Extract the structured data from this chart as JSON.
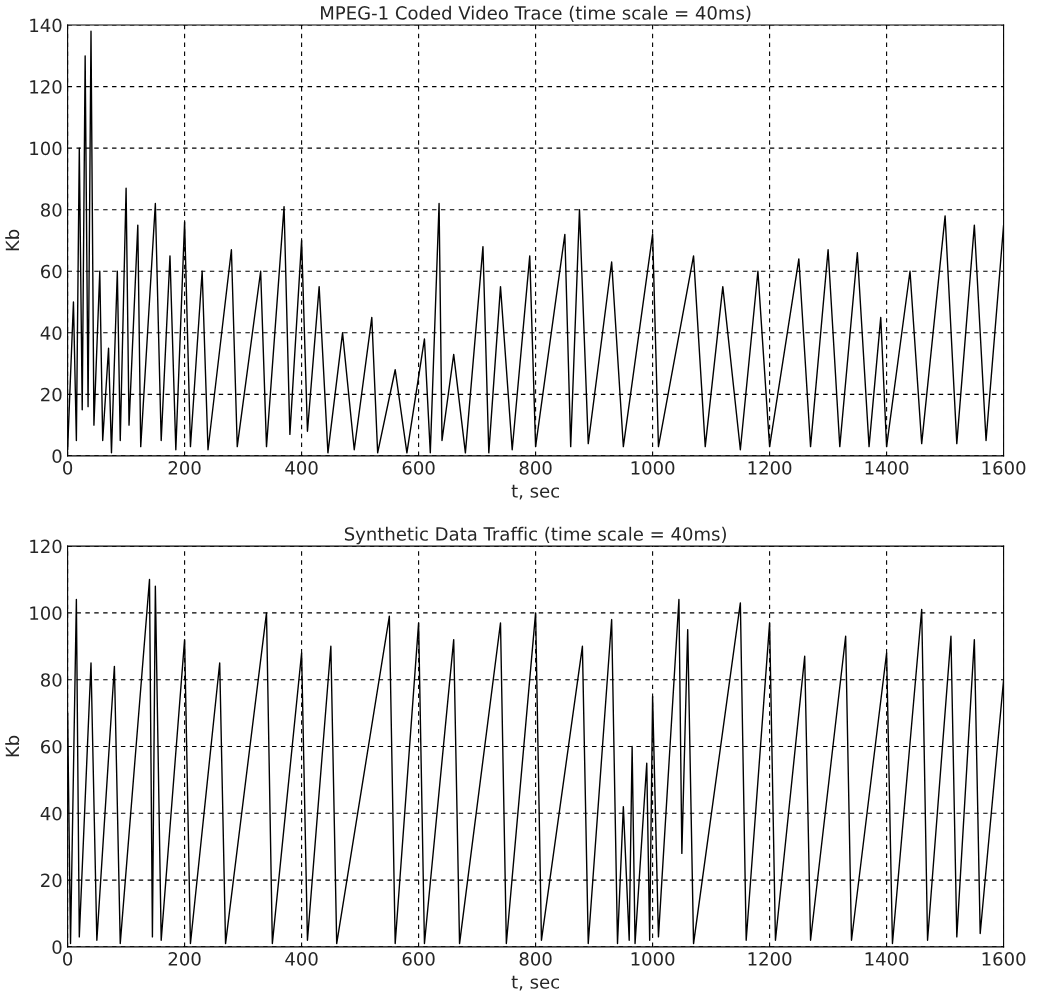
{
  "chart_data": [
    {
      "type": "line",
      "title": "MPEG-1 Coded Video Trace (time scale = 40ms)",
      "xlabel": "t, sec",
      "ylabel": "Kb",
      "xlim": [
        0,
        1600
      ],
      "ylim": [
        0,
        140
      ],
      "xticks": [
        0,
        200,
        400,
        600,
        800,
        1000,
        1200,
        1400,
        1600
      ],
      "yticks": [
        0,
        20,
        40,
        60,
        80,
        100,
        120,
        140
      ],
      "grid": true,
      "line_style": "solid",
      "legend": false,
      "series": [
        {
          "color": "#000000",
          "x": [
            0,
            10,
            15,
            20,
            25,
            30,
            35,
            40,
            45,
            55,
            60,
            70,
            75,
            85,
            90,
            100,
            105,
            120,
            125,
            150,
            160,
            175,
            185,
            200,
            210,
            230,
            240,
            280,
            290,
            330,
            340,
            370,
            380,
            400,
            410,
            430,
            445,
            470,
            490,
            520,
            530,
            560,
            580,
            610,
            620,
            635,
            640,
            660,
            680,
            710,
            720,
            740,
            760,
            790,
            800,
            850,
            860,
            875,
            890,
            930,
            950,
            1000,
            1010,
            1070,
            1090,
            1120,
            1150,
            1180,
            1200,
            1250,
            1270,
            1300,
            1320,
            1350,
            1370,
            1390,
            1400,
            1440,
            1460,
            1500,
            1520,
            1550,
            1570,
            1600
          ],
          "values": [
            2,
            50,
            5,
            100,
            15,
            130,
            16,
            138,
            10,
            60,
            5,
            35,
            1,
            60,
            5,
            87,
            10,
            75,
            3,
            82,
            5,
            65,
            2,
            76,
            3,
            60,
            2,
            67,
            3,
            60,
            3,
            81,
            7,
            70,
            8,
            55,
            1,
            40,
            2,
            45,
            1,
            28,
            1,
            38,
            1,
            82,
            5,
            33,
            1,
            68,
            1,
            55,
            2,
            65,
            3,
            72,
            3,
            80,
            4,
            63,
            3,
            72,
            3,
            65,
            3,
            55,
            2,
            60,
            3,
            64,
            3,
            67,
            3,
            66,
            3,
            45,
            3,
            60,
            4,
            78,
            4,
            75,
            5,
            75
          ]
        }
      ]
    },
    {
      "type": "line",
      "title": "Synthetic Data Traffic (time scale = 40ms)",
      "xlabel": "t, sec",
      "ylabel": "Kb",
      "xlim": [
        0,
        1600
      ],
      "ylim": [
        0,
        120
      ],
      "xticks": [
        0,
        200,
        400,
        600,
        800,
        1000,
        1200,
        1400,
        1600
      ],
      "yticks": [
        0,
        20,
        40,
        60,
        80,
        100,
        120
      ],
      "grid": true,
      "line_style": "solid",
      "legend": false,
      "series": [
        {
          "color": "#000000",
          "x": [
            0,
            5,
            15,
            20,
            40,
            50,
            80,
            90,
            140,
            145,
            150,
            160,
            200,
            210,
            260,
            270,
            340,
            350,
            400,
            410,
            450,
            460,
            550,
            560,
            600,
            610,
            660,
            670,
            740,
            750,
            800,
            810,
            880,
            890,
            930,
            940,
            950,
            960,
            965,
            970,
            990,
            995,
            1000,
            1010,
            1045,
            1050,
            1060,
            1070,
            1150,
            1160,
            1200,
            1210,
            1260,
            1270,
            1330,
            1340,
            1400,
            1410,
            1460,
            1470,
            1510,
            1520,
            1550,
            1560,
            1600
          ],
          "values": [
            70,
            1,
            104,
            3,
            85,
            2,
            84,
            1,
            110,
            3,
            108,
            2,
            92,
            1,
            85,
            1,
            100,
            1,
            88,
            2,
            90,
            1,
            99,
            1,
            97,
            1,
            92,
            1,
            97,
            1,
            100,
            2,
            90,
            1,
            98,
            1,
            42,
            2,
            60,
            1,
            55,
            2,
            75,
            3,
            104,
            28,
            95,
            1,
            103,
            2,
            97,
            2,
            87,
            2,
            93,
            2,
            88,
            1,
            101,
            2,
            93,
            3,
            92,
            4,
            80
          ]
        }
      ]
    }
  ]
}
